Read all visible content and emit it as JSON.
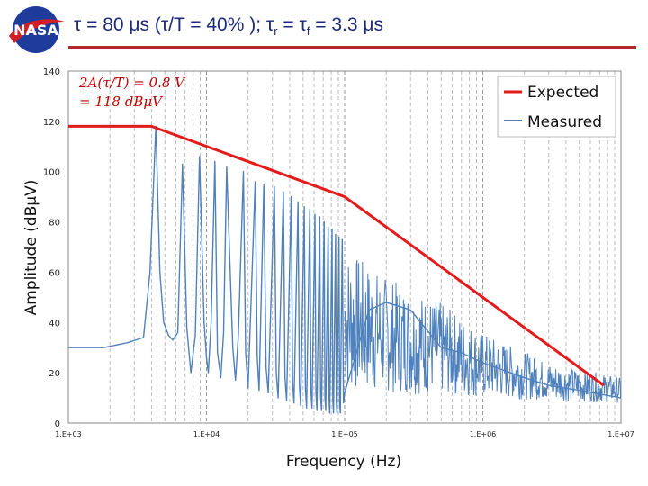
{
  "header": {
    "logo_text": "NASA",
    "title_main": "τ = 80 μs (τ/T = 40% ); τ",
    "title_sub_r": "r",
    "title_mid": " = τ",
    "title_sub_f": "f",
    "title_end": " = 3.3 μs"
  },
  "colors": {
    "expected": "#e31b1b",
    "measured": "#4f81bd",
    "rule": "#b3292b",
    "title": "#1c2a78"
  },
  "chart_data": {
    "type": "line",
    "xscale": "log",
    "xlabel": "Frequency (Hz)",
    "ylabel": "Amplitude (dBμV)",
    "xlim": [
      1000,
      10000000
    ],
    "ylim": [
      0,
      140
    ],
    "x_ticks": [
      "1.E+03",
      "1.E+04",
      "1.E+05",
      "1.E+06",
      "1.E+07"
    ],
    "y_ticks": [
      "0",
      "20",
      "40",
      "60",
      "80",
      "100",
      "120",
      "140"
    ],
    "grid": "vertical dashed, log minor",
    "legend_position": "top-right",
    "annotation_line1": "2A(τ/T) = 0.8 V",
    "annotation_line2": "= 118 dBμV",
    "series": [
      {
        "name": "Expected",
        "x": [
          1000,
          4000,
          100000,
          7500000
        ],
        "y": [
          118,
          118,
          90,
          15
        ]
      },
      {
        "name": "Measured",
        "x": [
          1000,
          1800,
          2700,
          3500,
          3900,
          4300,
          4600,
          4900,
          5300,
          5700,
          6200,
          6700,
          7200,
          7700,
          8300,
          8900,
          9600,
          10000,
          10300,
          10800,
          11500,
          12000,
          12700,
          13300,
          14000,
          15500,
          16200,
          17000,
          18500,
          19200,
          20000,
          22500,
          23300,
          24000,
          26000,
          27000,
          28000,
          31000,
          32000,
          33000,
          36000,
          37000,
          38000,
          41000,
          42000,
          43000,
          46000,
          47000,
          48000,
          51000,
          52000,
          53000,
          56000,
          57000,
          58000,
          61000,
          62000,
          63000,
          66000,
          67000,
          68000,
          71000,
          72000,
          73000,
          76000,
          77000,
          78000,
          81000,
          82000,
          83000,
          86000,
          87000,
          88000,
          91000,
          92000,
          93000,
          96000,
          98000,
          100000,
          150000,
          200000,
          300000,
          500000,
          700000,
          1000000,
          2000000,
          3000000,
          5000000,
          10000000
        ],
        "y": [
          30,
          30,
          32,
          34,
          60,
          118,
          60,
          40,
          35,
          33,
          36,
          103,
          38,
          20,
          35,
          106,
          40,
          26,
          20,
          40,
          104,
          28,
          18,
          36,
          102,
          30,
          17,
          35,
          100,
          28,
          14,
          96,
          26,
          13,
          95,
          22,
          12,
          94,
          20,
          10,
          92,
          18,
          9,
          90,
          16,
          8,
          88,
          15,
          7,
          86,
          14,
          6,
          85,
          13,
          6,
          83,
          12,
          5,
          82,
          11,
          5,
          80,
          10,
          5,
          78,
          10,
          4,
          77,
          9,
          4,
          75,
          9,
          4,
          74,
          8,
          4,
          73,
          8,
          12,
          45,
          48,
          45,
          30,
          28,
          24,
          18,
          15,
          13,
          10
        ]
      }
    ]
  }
}
